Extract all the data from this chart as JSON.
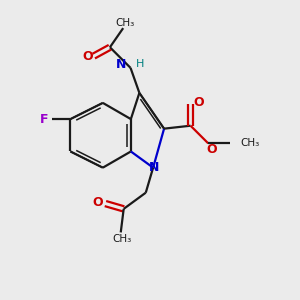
{
  "bg_color": "#ebebeb",
  "bond_color": "#1a1a1a",
  "N_color": "#0000cc",
  "O_color": "#cc0000",
  "F_color": "#9900cc",
  "NH_color": "#008080",
  "lw": 1.6,
  "lw2": 1.1,
  "fs": 8.5,
  "figsize": [
    3.0,
    3.0
  ],
  "dpi": 100,
  "xlim": [
    0,
    10
  ],
  "ylim": [
    0,
    10
  ]
}
